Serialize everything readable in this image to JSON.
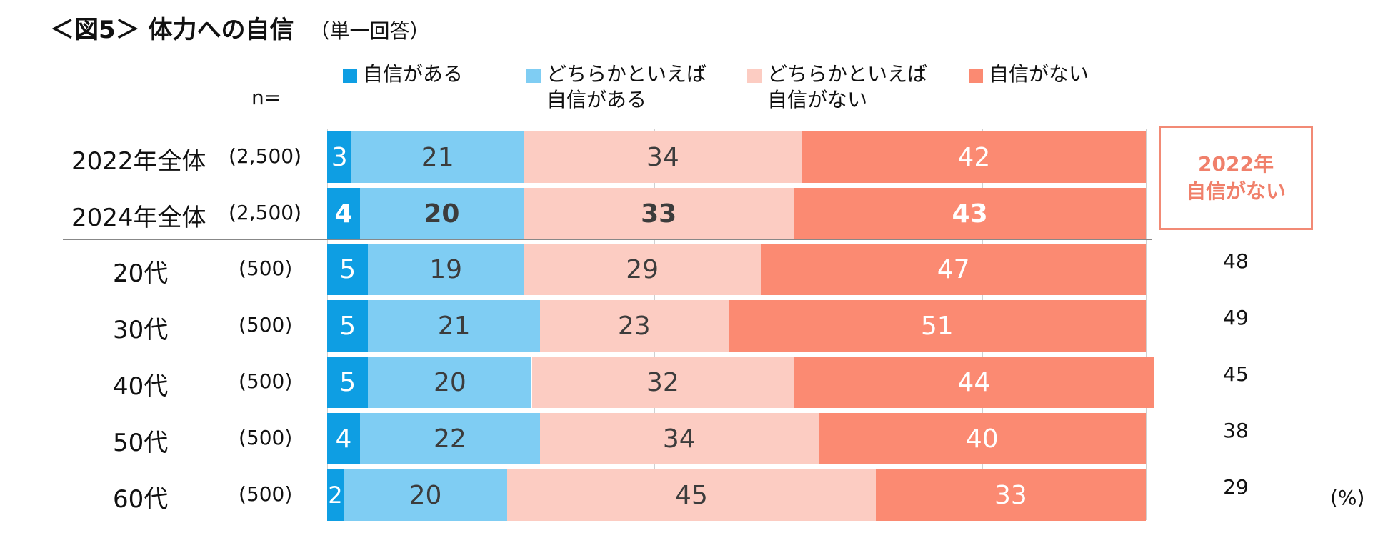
{
  "title": {
    "main": "＜図5＞ 体力への自信",
    "sub": "（単一回答）"
  },
  "n_label": "n=",
  "unit": "(%)",
  "side_box": {
    "line1": "2022年",
    "line2": "自信がない"
  },
  "colors": {
    "confident": "#0e9ee3",
    "somewhat_confident": "#7fcdf3",
    "somewhat_not_confident": "#fcccc2",
    "not_confident": "#fb8a72",
    "side_box": "#f28a75"
  },
  "chart_data": {
    "type": "bar",
    "orientation": "horizontal",
    "stacked": true,
    "percent": true,
    "title": "＜図5＞ 体力への自信",
    "xlim": [
      0,
      100
    ],
    "legend": [
      "自信がある",
      "どちらかといえば\n自信がある",
      "どちらかといえば\n自信がない",
      "自信がない"
    ],
    "legend_position": "top",
    "categories": [
      "2022年全体",
      "2024年全体",
      "20代",
      "30代",
      "40代",
      "50代",
      "60代"
    ],
    "n": [
      "(2,500)",
      "(2,500)",
      "(500)",
      "(500)",
      "(500)",
      "(500)",
      "(500)"
    ],
    "series": [
      {
        "name": "自信がある",
        "values": [
          3,
          4,
          5,
          5,
          5,
          4,
          2
        ]
      },
      {
        "name": "どちらかといえば自信がある",
        "values": [
          21,
          20,
          19,
          21,
          20,
          22,
          20
        ]
      },
      {
        "name": "どちらかといえば自信がない",
        "values": [
          34,
          33,
          29,
          23,
          32,
          34,
          45
        ]
      },
      {
        "name": "自信がない",
        "values": [
          42,
          43,
          47,
          51,
          44,
          40,
          33
        ]
      }
    ],
    "comparison_2022_not_confident": [
      "48",
      "49",
      "45",
      "38",
      "29"
    ],
    "bold_rows": [
      1
    ]
  }
}
